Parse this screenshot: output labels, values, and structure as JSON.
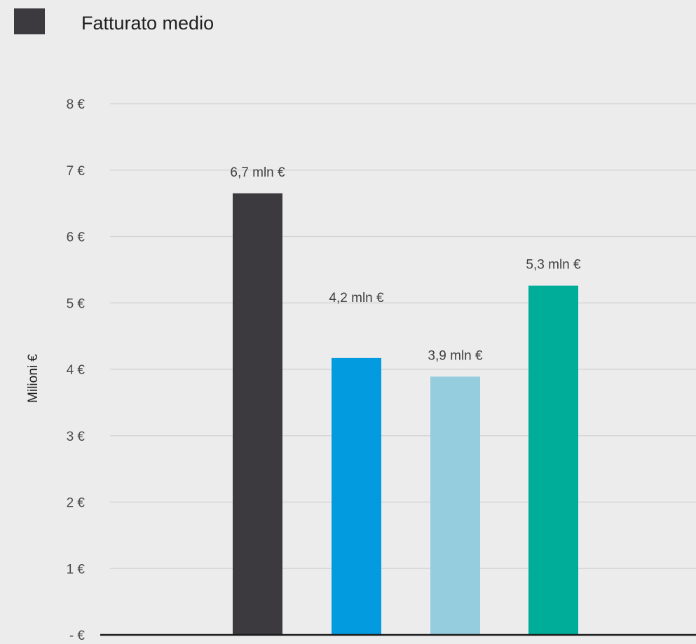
{
  "chart_data": {
    "type": "bar",
    "legend": {
      "position": "top-left",
      "entries": [
        {
          "label": "Fatturato medio",
          "color": "#3c3a3f"
        }
      ]
    },
    "ylabel": "Milioni €",
    "xlabel": "",
    "ylim": [
      0,
      8
    ],
    "y_ticks": [
      {
        "value": 0,
        "label": "-  €"
      },
      {
        "value": 1,
        "label": "1 €"
      },
      {
        "value": 2,
        "label": "2 €"
      },
      {
        "value": 3,
        "label": "3 €"
      },
      {
        "value": 4,
        "label": "4 €"
      },
      {
        "value": 5,
        "label": "5 €"
      },
      {
        "value": 6,
        "label": "6 €"
      },
      {
        "value": 7,
        "label": "7 €"
      },
      {
        "value": 8,
        "label": "8 €"
      }
    ],
    "grid": true,
    "bars": [
      {
        "value": 6.65,
        "label": "6,7 mln €",
        "color": "#3c3a3f"
      },
      {
        "value": 4.17,
        "label": "4,2 mln €",
        "color": "#039be0"
      },
      {
        "value": 3.89,
        "label": "3,9 mln €",
        "color": "#96cdde"
      },
      {
        "value": 5.26,
        "label": "5,3 mln €",
        "color": "#00ad98"
      }
    ]
  }
}
